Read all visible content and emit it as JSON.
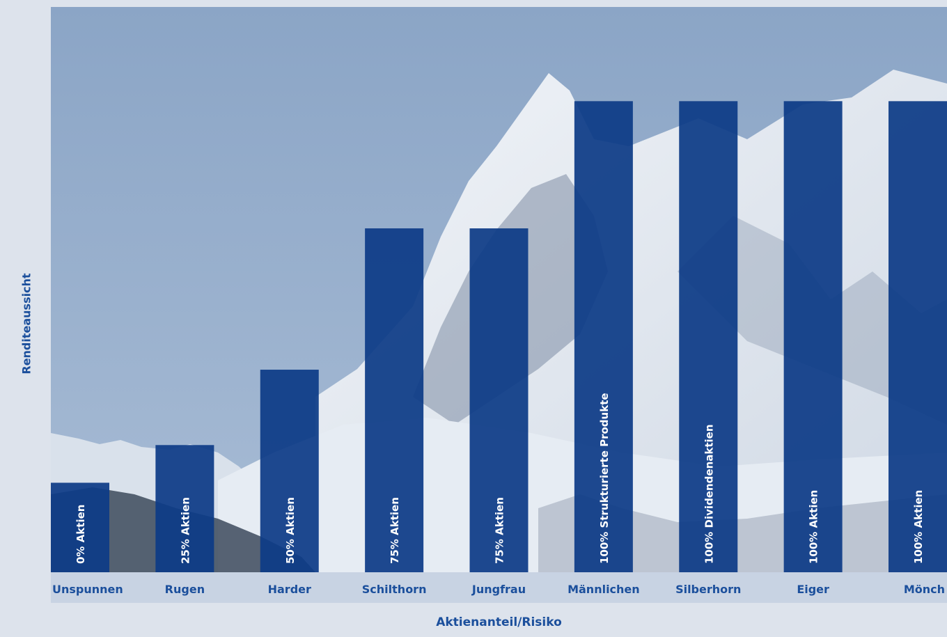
{
  "chart_data": {
    "type": "bar",
    "xlabel": "Aktienanteil/Risiko",
    "ylabel": "Renditeaussicht",
    "categories": [
      "Unspunnen",
      "Rugen",
      "Harder",
      "Schilthorn",
      "Jungfrau",
      "Männlichen",
      "Silberhorn",
      "Eiger",
      "Mönch"
    ],
    "bar_labels": [
      "0% Aktien",
      "25% Aktien",
      "50% Aktien",
      "75% Aktien",
      "75% Aktien",
      "100% Strukturierte Produkte",
      "100% Dividendenaktien",
      "100% Aktien",
      "100% Aktien"
    ],
    "values": [
      19,
      27,
      43,
      73,
      73,
      100,
      100,
      100,
      100
    ],
    "ylim": [
      0,
      120
    ],
    "grid": false,
    "legend": "none",
    "axis_ticks_shown": false
  },
  "colors": {
    "bar": "#0d3b87",
    "text": "#1b4f9c",
    "bar_label": "#ffffff",
    "sky": "#8fa8c8",
    "snow": "#e6ecf3",
    "rock": "#7d8da4",
    "forest": "#3c4a5c",
    "frame": "#dde3ec",
    "strip": "#c8d3e3"
  }
}
